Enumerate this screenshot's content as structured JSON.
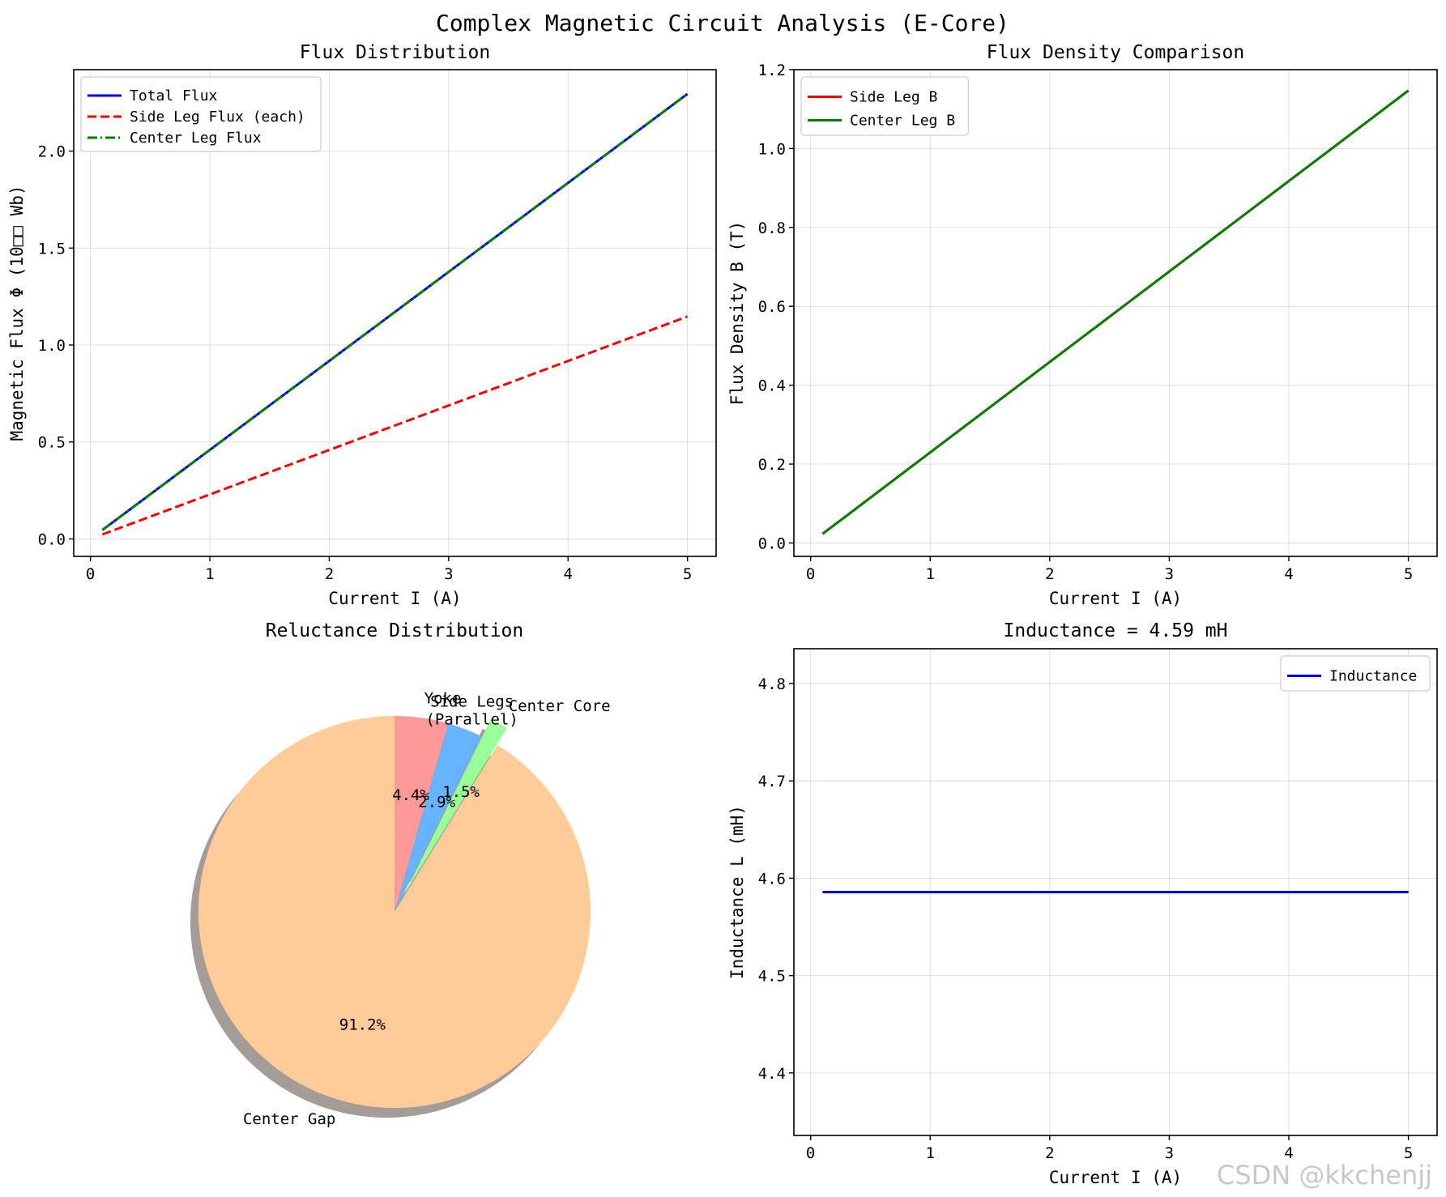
{
  "suptitle": "Complex Magnetic Circuit Analysis (E-Core)",
  "watermark": "CSDN @kkchenjj",
  "chart_data": [
    {
      "id": "flux",
      "type": "line",
      "title": "Flux Distribution",
      "xlabel": "Current I (A)",
      "ylabel": "Magnetic Flux Φ (10□□ Wb)",
      "xlim": [
        -0.14,
        5.24
      ],
      "ylim": [
        -0.09,
        2.42
      ],
      "xticks": [
        0,
        1,
        2,
        3,
        4,
        5
      ],
      "xticklabels": [
        "0",
        "1",
        "2",
        "3",
        "4",
        "5"
      ],
      "yticks": [
        0.0,
        0.5,
        1.0,
        1.5,
        2.0
      ],
      "yticklabels": [
        "0.0",
        "0.5",
        "1.0",
        "1.5",
        "2.0"
      ],
      "grid": true,
      "legend_loc": "upper left",
      "series": [
        {
          "name": "Total Flux",
          "color": "#0000ff",
          "dash": "solid",
          "x": [
            0.1,
            5.0
          ],
          "y": [
            0.046,
            2.295
          ]
        },
        {
          "name": "Side Leg Flux (each)",
          "color": "#ff0000",
          "dash": "dashed",
          "x": [
            0.1,
            5.0
          ],
          "y": [
            0.023,
            1.147
          ]
        },
        {
          "name": "Center Leg Flux",
          "color": "#007f00",
          "dash": "dashdot",
          "x": [
            0.1,
            5.0
          ],
          "y": [
            0.046,
            2.295
          ]
        }
      ]
    },
    {
      "id": "density",
      "type": "line",
      "title": "Flux Density Comparison",
      "xlabel": "Current I (A)",
      "ylabel": "Flux Density B (T)",
      "xlim": [
        -0.14,
        5.24
      ],
      "ylim": [
        -0.034,
        1.2
      ],
      "xticks": [
        0,
        1,
        2,
        3,
        4,
        5
      ],
      "xticklabels": [
        "0",
        "1",
        "2",
        "3",
        "4",
        "5"
      ],
      "yticks": [
        0.0,
        0.2,
        0.4,
        0.6,
        0.8,
        1.0,
        1.2
      ],
      "yticklabels": [
        "0.0",
        "0.2",
        "0.4",
        "0.6",
        "0.8",
        "1.0",
        "1.2"
      ],
      "grid": true,
      "legend_loc": "upper left",
      "series": [
        {
          "name": "Side Leg B",
          "color": "#ff0000",
          "dash": "solid",
          "x": [
            0.1,
            5.0
          ],
          "y": [
            0.023,
            1.147
          ]
        },
        {
          "name": "Center Leg B",
          "color": "#007f00",
          "dash": "solid",
          "x": [
            0.1,
            5.0
          ],
          "y": [
            0.023,
            1.147
          ]
        }
      ]
    },
    {
      "id": "reluctance",
      "type": "pie",
      "title": "Reluctance Distribution",
      "shadow": true,
      "start_angle": 90,
      "slices": [
        {
          "label": "Center Gap",
          "value": 91.2,
          "pct_label": "91.2%",
          "color": "#ffcc99",
          "explode": 0
        },
        {
          "label": "Center Core",
          "value": 1.5,
          "pct_label": "1.5%",
          "color": "#99ff99",
          "explode": 0.1
        },
        {
          "label": "Side Legs\n(Parallel)",
          "value": 2.9,
          "pct_label": "2.9%",
          "color": "#66b3ff",
          "explode": 0
        },
        {
          "label": "Yoke",
          "value": 4.4,
          "pct_label": "4.4%",
          "color": "#ff9999",
          "explode": 0
        }
      ]
    },
    {
      "id": "inductance",
      "type": "line",
      "title": "Inductance = 4.59 mH",
      "xlabel": "Current I (A)",
      "ylabel": "Inductance L (mH)",
      "xlim": [
        -0.14,
        5.24
      ],
      "ylim": [
        4.3358,
        4.8358
      ],
      "xticks": [
        0,
        1,
        2,
        3,
        4,
        5
      ],
      "xticklabels": [
        "0",
        "1",
        "2",
        "3",
        "4",
        "5"
      ],
      "yticks": [
        4.4,
        4.5,
        4.6,
        4.7,
        4.8
      ],
      "yticklabels": [
        "4.4",
        "4.5",
        "4.6",
        "4.7",
        "4.8"
      ],
      "grid": true,
      "legend_loc": "upper right",
      "series": [
        {
          "name": "Inductance",
          "color": "#0000ff",
          "dash": "solid",
          "x": [
            0.1,
            5.0
          ],
          "y": [
            4.5858,
            4.5858
          ]
        }
      ]
    }
  ]
}
